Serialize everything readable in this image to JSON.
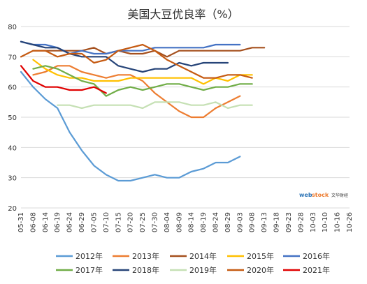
{
  "chart_data": {
    "type": "line",
    "title": "美国大豆优良率（%）",
    "categories": [
      "05-31",
      "06-08",
      "06-14",
      "06-19",
      "06-24",
      "06-29",
      "07-05",
      "07-10",
      "07-15",
      "07-20",
      "07-25",
      "07-30",
      "08-04",
      "08-09",
      "08-14",
      "08-19",
      "08-24",
      "08-29",
      "09-03",
      "09-08",
      "09-13",
      "09-18",
      "09-23",
      "09-28",
      "10-03",
      "10-10",
      "10-16",
      "10-26"
    ],
    "ylim": [
      20,
      80
    ],
    "yticks": [
      20,
      30,
      40,
      50,
      60,
      70,
      80
    ],
    "grid": true,
    "legend_position": "bottom",
    "series": [
      {
        "name": "2012年",
        "color": "#5B9BD5",
        "values": [
          65,
          60,
          56,
          53,
          45,
          39,
          34,
          31,
          29,
          29,
          30,
          31,
          30,
          30,
          32,
          33,
          35,
          35,
          37,
          null,
          null,
          null,
          null,
          null,
          null,
          null,
          null,
          null
        ]
      },
      {
        "name": "2013年",
        "color": "#ED7D31",
        "values": [
          null,
          64,
          65,
          67,
          67,
          65,
          64,
          63,
          64,
          64,
          62,
          58,
          55,
          52,
          50,
          50,
          53,
          55,
          57,
          null,
          null,
          null,
          null,
          null,
          null,
          null,
          null,
          null
        ]
      },
      {
        "name": "2014年",
        "color": "#A5501E",
        "values": [
          null,
          72,
          72,
          72,
          72,
          72,
          73,
          71,
          72,
          71,
          71,
          72,
          70,
          72,
          72,
          72,
          72,
          72,
          72,
          73,
          73,
          null,
          null,
          null,
          null,
          null,
          null,
          null
        ]
      },
      {
        "name": "2015年",
        "color": "#FFC000",
        "values": [
          null,
          69,
          66,
          64,
          63,
          63,
          62,
          62,
          62,
          63,
          63,
          63,
          63,
          63,
          63,
          61,
          63,
          62,
          64,
          64,
          null,
          null,
          null,
          null,
          null,
          null,
          null,
          null
        ]
      },
      {
        "name": "2016年",
        "color": "#4472C4",
        "values": [
          75,
          74,
          74,
          73,
          71,
          72,
          71,
          71,
          72,
          72,
          72,
          73,
          73,
          73,
          73,
          73,
          74,
          74,
          74,
          null,
          null,
          null,
          null,
          null,
          null,
          null,
          null,
          null
        ]
      },
      {
        "name": "2017年",
        "color": "#70AD47",
        "values": [
          null,
          66,
          67,
          66,
          64,
          62,
          61,
          57,
          59,
          60,
          59,
          60,
          61,
          61,
          60,
          59,
          60,
          60,
          61,
          61,
          null,
          null,
          null,
          null,
          null,
          null,
          null,
          null
        ]
      },
      {
        "name": "2018年",
        "color": "#264478",
        "values": [
          75,
          74,
          73,
          73,
          71,
          70,
          70,
          70,
          67,
          66,
          65,
          66,
          66,
          68,
          67,
          68,
          68,
          68,
          null,
          null,
          null,
          null,
          null,
          null,
          null,
          null,
          null,
          null
        ]
      },
      {
        "name": "2019年",
        "color": "#C5E0B4",
        "values": [
          null,
          null,
          null,
          54,
          54,
          53,
          54,
          54,
          54,
          54,
          53,
          55,
          55,
          55,
          54,
          54,
          55,
          53,
          54,
          54,
          null,
          null,
          null,
          null,
          null,
          null,
          null,
          null
        ]
      },
      {
        "name": "2020年",
        "color": "#C55A11",
        "values": [
          70,
          72,
          72,
          70,
          71,
          71,
          68,
          69,
          72,
          73,
          74,
          72,
          69,
          67,
          65,
          63,
          63,
          64,
          64,
          63,
          null,
          null,
          null,
          null,
          null,
          null,
          null,
          null
        ]
      },
      {
        "name": "2021年",
        "color": "#E00000",
        "values": [
          67,
          62,
          60,
          60,
          59,
          59,
          60,
          58,
          null,
          null,
          null,
          null,
          null,
          null,
          null,
          null,
          null,
          null,
          null,
          null,
          null,
          null,
          null,
          null,
          null,
          null,
          null,
          null
        ]
      }
    ],
    "watermark": "webstock 文华财经"
  }
}
